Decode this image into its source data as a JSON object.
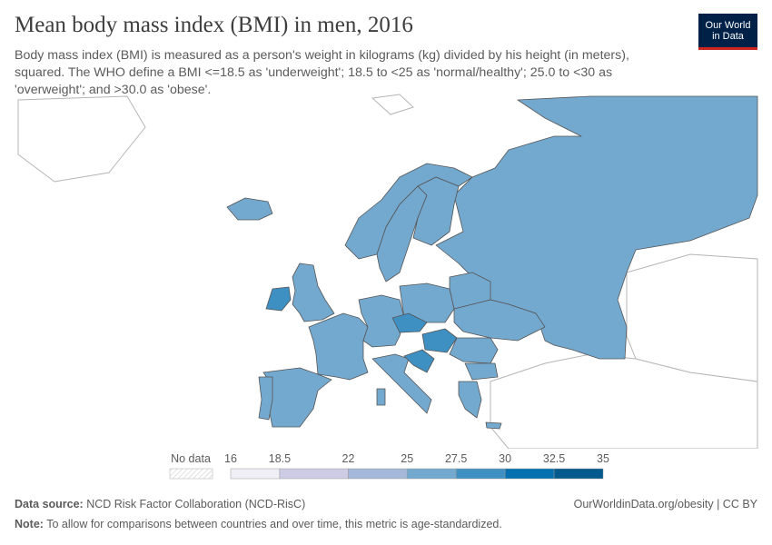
{
  "title": "Mean body mass index (BMI) in men, 2016",
  "subtitle": "Body mass index (BMI) is measured as a person's weight in kilograms (kg) divided by his height (in meters), squared. The WHO define a BMI <=18.5 as 'underweight'; 18.5 to <25 as 'normal/healthy'; 25.0 to <30 as 'overweight'; and >30.0 as 'obese'.",
  "logo": {
    "line1": "Our World",
    "line2": "in Data"
  },
  "legend": {
    "no_data_label": "No data",
    "ticks": [
      "16",
      "18.5",
      "22",
      "25",
      "27.5",
      "30",
      "32.5",
      "35"
    ],
    "bins": [
      {
        "from": 16,
        "to": 18.5,
        "color": "#f1eff6"
      },
      {
        "from": 18.5,
        "to": 22,
        "color": "#cccde5"
      },
      {
        "from": 22,
        "to": 25,
        "color": "#a5b8d9"
      },
      {
        "from": 25,
        "to": 27.5,
        "color": "#74a9cf"
      },
      {
        "from": 27.5,
        "to": 30,
        "color": "#3e8fc2"
      },
      {
        "from": 30,
        "to": 32.5,
        "color": "#0570b0"
      },
      {
        "from": 32.5,
        "to": 35,
        "color": "#045a8d"
      }
    ]
  },
  "colors": {
    "land_no_data": "#ffffff",
    "border": "#555555",
    "outline": "#b5b5b5"
  },
  "footer": {
    "source_label": "Data source:",
    "source_text": "NCD Risk Factor Collaboration (NCD-RisC)",
    "url_text": "OurWorldinData.org/obesity | CC BY",
    "note_label": "Note:",
    "note_text": "To allow for comparisons between countries and over time, this metric is age-standardized."
  }
}
